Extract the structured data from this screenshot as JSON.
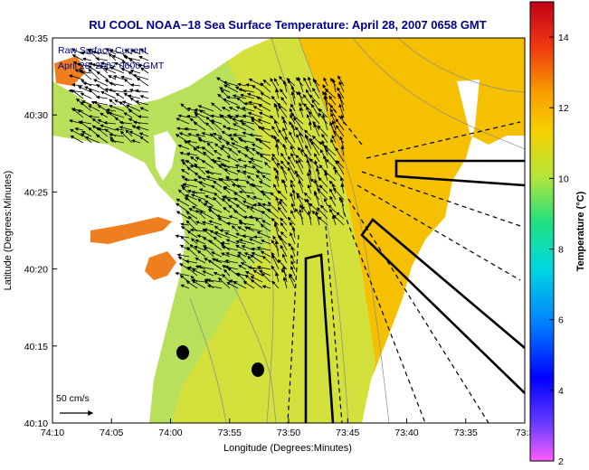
{
  "title": "RU COOL  NOAA−18  Sea Surface Temperature:  April 28, 2007 0658 GMT",
  "overlay": {
    "line1": "Raw Surface Current",
    "line2": "April 28, 2007 0600 GMT"
  },
  "axes": {
    "xlabel": "Longitude (Degrees:Minutes)",
    "ylabel": "Latitude (Degrees:Minutes)",
    "x_ticks": [
      "74:10",
      "74:05",
      "74:00",
      "73:55",
      "73:50",
      "73:45",
      "73:40",
      "73:35",
      "73:3"
    ],
    "y_ticks": [
      "40:35",
      "40:30",
      "40:25",
      "40:20",
      "40:15",
      "40:10"
    ]
  },
  "scale_arrow": {
    "label": "50 cm/s"
  },
  "colorbar": {
    "label": "Temperature (°C)",
    "ticks": [
      "2",
      "4",
      "6",
      "8",
      "10",
      "12",
      "14"
    ],
    "min": 2,
    "max": 15
  },
  "colors": {
    "title": "#00008b",
    "land": "#ffffff",
    "sst_warm": "#f5c000",
    "sst_mid": "#d6e23a",
    "sst_cool": "#b9e05a",
    "estuary": "#ef7f1e",
    "vector": "#000000"
  }
}
